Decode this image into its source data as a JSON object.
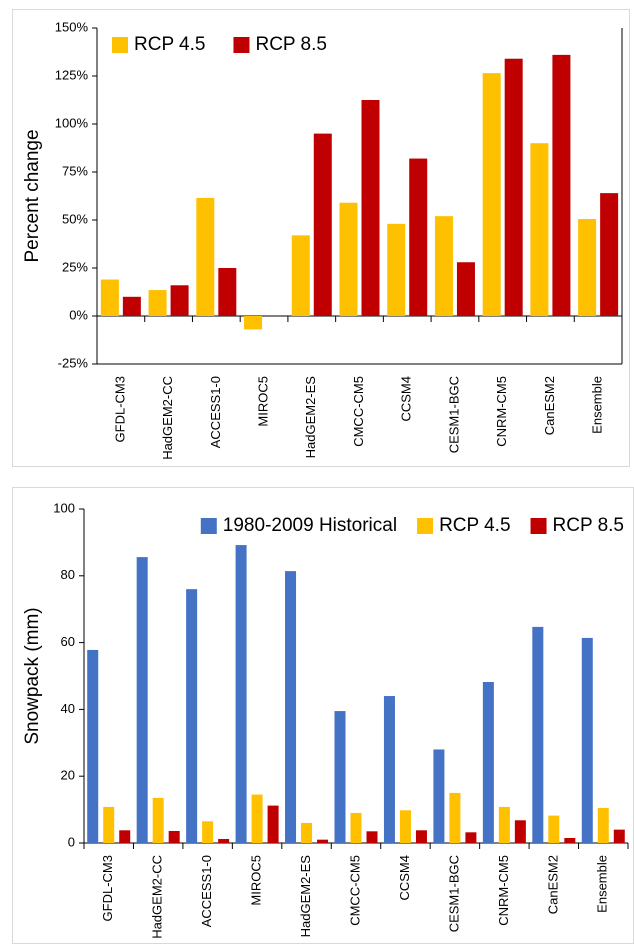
{
  "chart_data": [
    {
      "type": "bar",
      "y_label": "Percent change",
      "categories": [
        "GFDL-CM3",
        "HadGEM2-CC",
        "ACCESS1-0",
        "MIROC5",
        "HadGEM2-ES",
        "CMCC-CM5",
        "CCSM4",
        "CESM1-BGC",
        "CNRM-CM5",
        "CanESM2",
        "Ensemble"
      ],
      "series": [
        {
          "name": "RCP 4.5",
          "color": "#ffc000",
          "values": [
            19,
            13.5,
            61.5,
            -7,
            42,
            59,
            48,
            52,
            126.5,
            90,
            50.5
          ]
        },
        {
          "name": "RCP 8.5",
          "color": "#c00000",
          "values": [
            10,
            16,
            25,
            0,
            95,
            112.5,
            82,
            28,
            134,
            136,
            64
          ]
        }
      ],
      "ylim": [
        -25,
        150
      ],
      "yticks": [
        {
          "value": -25,
          "label": "-25%"
        },
        {
          "value": 0,
          "label": "0%"
        },
        {
          "value": 25,
          "label": "25%"
        },
        {
          "value": 50,
          "label": "50%"
        },
        {
          "value": 75,
          "label": "75%"
        },
        {
          "value": 100,
          "label": "100%"
        },
        {
          "value": 125,
          "label": "125%"
        },
        {
          "value": 150,
          "label": "150%"
        }
      ],
      "legend": "top-left"
    },
    {
      "type": "bar",
      "y_label": "Snowpack (mm)",
      "categories": [
        "GFDL-CM3",
        "HadGEM2-CC",
        "ACCESS1-0",
        "MIROC5",
        "HadGEM2-ES",
        "CMCC-CM5",
        "CCSM4",
        "CESM1-BGC",
        "CNRM-CM5",
        "CanESM2",
        "Ensemble"
      ],
      "series": [
        {
          "name": "1980-2009 Historical",
          "color": "#4472c4",
          "values": [
            57.8,
            85.6,
            76,
            89.2,
            81.4,
            39.5,
            44,
            28,
            48.2,
            64.7,
            61.4
          ]
        },
        {
          "name": "RCP 4.5",
          "color": "#ffc000",
          "values": [
            10.8,
            13.5,
            6.5,
            14.5,
            6,
            9,
            9.8,
            15,
            10.8,
            8.2,
            10.5
          ]
        },
        {
          "name": "RCP 8.5",
          "color": "#c00000",
          "values": [
            3.8,
            3.6,
            1.2,
            11.2,
            1,
            3.5,
            3.8,
            3.2,
            6.8,
            1.5,
            4
          ]
        }
      ],
      "ylim": [
        0,
        100
      ],
      "yticks": [
        0,
        20,
        40,
        60,
        80,
        100
      ],
      "legend": "top-right"
    }
  ]
}
